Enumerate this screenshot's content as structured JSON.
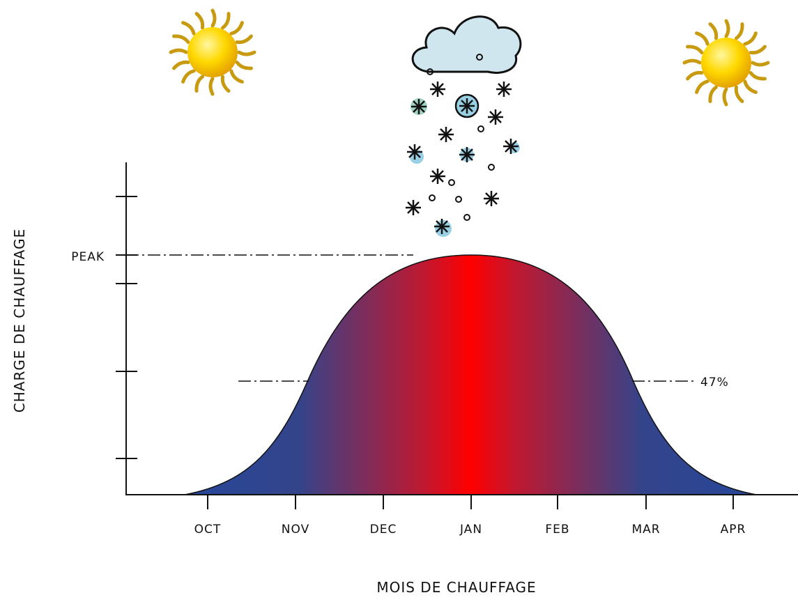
{
  "diagram": {
    "y_axis_label": "CHARGE DE CHAUFFAGE",
    "x_axis_label": "MOIS DE CHAUFFAGE",
    "peak_label": "PEAK",
    "threshold_label": "47%",
    "months": [
      "OCT",
      "NOV",
      "DEC",
      "JAN",
      "FEB",
      "MAR",
      "APR"
    ]
  }
}
